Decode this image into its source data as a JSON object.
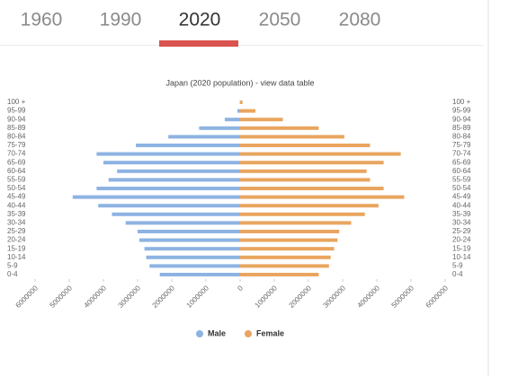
{
  "tabs": {
    "items": [
      "1960",
      "1990",
      "2020",
      "2050",
      "2080"
    ],
    "active": 2
  },
  "chart_data": {
    "type": "bar",
    "orientation": "horizontal",
    "title": "Japan (2020 population) - view data table",
    "categories": [
      "0-4",
      "5-9",
      "10-14",
      "15-19",
      "20-24",
      "25-29",
      "30-34",
      "35-39",
      "40-44",
      "45-49",
      "50-54",
      "55-59",
      "60-64",
      "65-69",
      "70-74",
      "75-79",
      "80-84",
      "85-89",
      "90-94",
      "95-99",
      "100 +"
    ],
    "series": [
      {
        "name": "Male",
        "color": "#8db3e2",
        "values": [
          -2350000,
          -2650000,
          -2750000,
          -2800000,
          -2950000,
          -3000000,
          -3350000,
          -3750000,
          -4150000,
          -4900000,
          -4200000,
          -3850000,
          -3600000,
          -4000000,
          -4200000,
          -3050000,
          -2100000,
          -1200000,
          -450000,
          -80000,
          -10000
        ]
      },
      {
        "name": "Female",
        "color": "#e9a55f",
        "values": [
          2300000,
          2600000,
          2650000,
          2750000,
          2850000,
          2900000,
          3250000,
          3650000,
          4050000,
          4800000,
          4200000,
          3800000,
          3700000,
          4200000,
          4700000,
          3800000,
          3050000,
          2300000,
          1250000,
          450000,
          70000
        ]
      }
    ],
    "xlim": [
      -6000000,
      6000000
    ],
    "xticks": [
      {
        "value": -6000000,
        "label": "6000000"
      },
      {
        "value": -5000000,
        "label": "5000000"
      },
      {
        "value": -4000000,
        "label": "4000000"
      },
      {
        "value": -3000000,
        "label": "3000000"
      },
      {
        "value": -2000000,
        "label": "2000000"
      },
      {
        "value": -1000000,
        "label": "1000000"
      },
      0,
      1000000,
      2000000,
      3000000,
      4000000,
      5000000,
      6000000
    ],
    "grid": false,
    "legend": "bottom"
  }
}
